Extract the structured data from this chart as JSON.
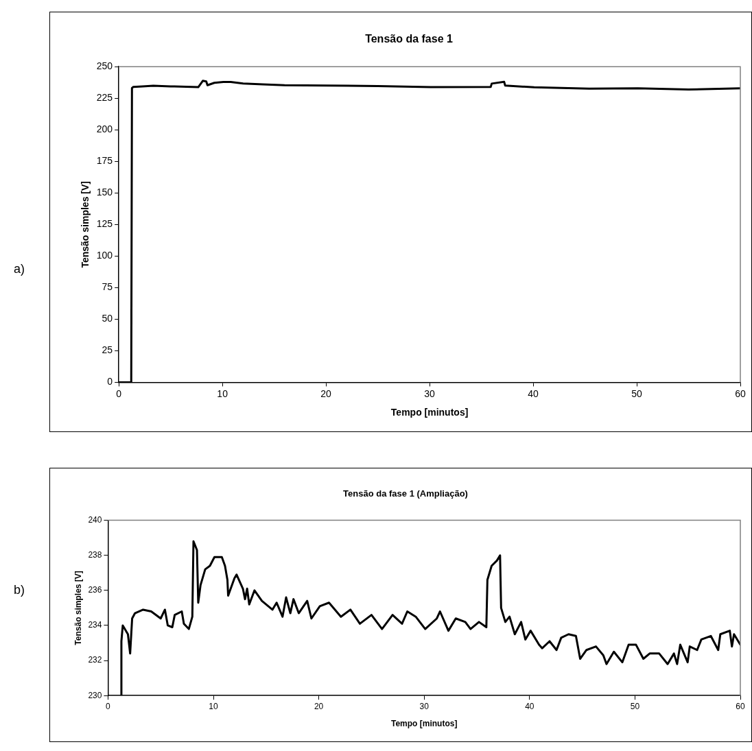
{
  "chart_data": [
    {
      "type": "line",
      "title": "Tensão da fase 1",
      "xlabel": "Tempo [minutos]",
      "ylabel": "Tensão simples [V]",
      "annotations": [
        "a)"
      ],
      "xlim": [
        0,
        60
      ],
      "xticks": [
        0,
        10,
        20,
        30,
        40,
        50,
        60
      ],
      "ylim": [
        0,
        250
      ],
      "yticks": [
        0,
        25,
        50,
        75,
        100,
        125,
        150,
        175,
        200,
        225,
        250
      ],
      "grid": false,
      "legend": false,
      "marker": "none",
      "line_style": "solid",
      "series": [
        {
          "color": "#000000",
          "x": [
            0,
            1.2,
            1.27,
            1.4,
            2.29,
            3.33,
            5.0,
            7.67,
            8.11,
            8.44,
            8.56,
            9.22,
            10.1,
            10.8,
            12.0,
            13.9,
            16.0,
            20.1,
            25.0,
            30.1,
            35.9,
            36.0,
            37.2,
            37.3,
            40.1,
            45.4,
            50.1,
            55.0,
            60.0
          ],
          "values": [
            0,
            0,
            233.1,
            234.0,
            234.4,
            234.9,
            234.4,
            233.8,
            238.8,
            238.3,
            235.3,
            237.2,
            237.9,
            237.9,
            236.7,
            236.0,
            235.3,
            235.1,
            234.6,
            233.8,
            233.9,
            236.6,
            238.0,
            235.0,
            233.7,
            232.6,
            232.9,
            231.9,
            232.9
          ]
        }
      ]
    },
    {
      "type": "line",
      "title": "Tensão da fase 1 (Ampliação)",
      "xlabel": "Tempo [minutos]",
      "ylabel": "Tensão simples [V]",
      "annotations": [
        "b)"
      ],
      "xlim": [
        0,
        60
      ],
      "xticks": [
        0,
        10,
        20,
        30,
        40,
        50,
        60
      ],
      "ylim": [
        230,
        240
      ],
      "yticks": [
        230,
        232,
        234,
        236,
        238,
        240
      ],
      "grid": false,
      "legend": false,
      "marker": "none",
      "line_style": "solid",
      "series": [
        {
          "color": "#000000",
          "x": [
            1.27,
            1.27,
            1.4,
            1.89,
            2.1,
            2.29,
            2.56,
            3.33,
            4.1,
            5.0,
            5.4,
            5.67,
            6.1,
            6.33,
            7.0,
            7.2,
            7.67,
            8.0,
            8.11,
            8.44,
            8.56,
            8.78,
            9.22,
            9.67,
            10.1,
            10.8,
            11.1,
            11.33,
            11.4,
            12.0,
            12.2,
            12.8,
            13.0,
            13.2,
            13.4,
            13.9,
            14.6,
            15.6,
            16.0,
            16.56,
            16.9,
            17.3,
            17.6,
            18.1,
            18.9,
            19.3,
            20.1,
            20.97,
            22.1,
            23.0,
            23.9,
            25.0,
            26.0,
            27.0,
            27.9,
            28.4,
            29.2,
            30.1,
            31.2,
            31.5,
            32.3,
            33.0,
            33.9,
            34.4,
            35.2,
            35.9,
            36.0,
            36.4,
            36.9,
            37.2,
            37.3,
            37.7,
            38.1,
            38.6,
            39.2,
            39.6,
            40.1,
            40.9,
            41.2,
            41.9,
            42.56,
            43.0,
            43.7,
            44.4,
            44.8,
            45.4,
            46.3,
            47.0,
            47.3,
            48.0,
            48.8,
            49.4,
            50.1,
            50.8,
            51.4,
            52.3,
            53.1,
            53.7,
            54.0,
            54.3,
            55.0,
            55.2,
            55.9,
            56.3,
            57.2,
            57.9,
            58.1,
            59.0,
            59.2,
            59.4,
            60.0
          ],
          "values": [
            230,
            233.1,
            234.0,
            233.5,
            232.4,
            234.4,
            234.7,
            234.9,
            234.8,
            234.4,
            234.9,
            234.0,
            233.9,
            234.6,
            234.8,
            234.1,
            233.8,
            234.5,
            238.8,
            238.3,
            235.3,
            236.3,
            237.2,
            237.4,
            237.9,
            237.9,
            237.4,
            236.6,
            235.7,
            236.7,
            236.9,
            236.1,
            235.5,
            236.1,
            235.2,
            236.0,
            235.4,
            234.9,
            235.3,
            234.5,
            235.6,
            234.7,
            235.5,
            234.7,
            235.4,
            234.4,
            235.1,
            235.3,
            234.5,
            234.9,
            234.1,
            234.6,
            233.8,
            234.6,
            234.1,
            234.8,
            234.5,
            233.8,
            234.4,
            234.8,
            233.7,
            234.4,
            234.2,
            233.8,
            234.2,
            233.9,
            236.6,
            237.4,
            237.7,
            238.0,
            235.0,
            234.2,
            234.5,
            233.5,
            234.2,
            233.2,
            233.7,
            232.9,
            232.7,
            233.1,
            232.6,
            233.3,
            233.5,
            233.4,
            232.1,
            232.6,
            232.8,
            232.3,
            231.8,
            232.5,
            231.9,
            232.9,
            232.9,
            232.1,
            232.4,
            232.4,
            231.8,
            232.4,
            231.8,
            232.9,
            231.9,
            232.8,
            232.6,
            233.2,
            233.4,
            232.6,
            233.5,
            233.7,
            232.8,
            233.5,
            232.9
          ]
        }
      ]
    }
  ]
}
